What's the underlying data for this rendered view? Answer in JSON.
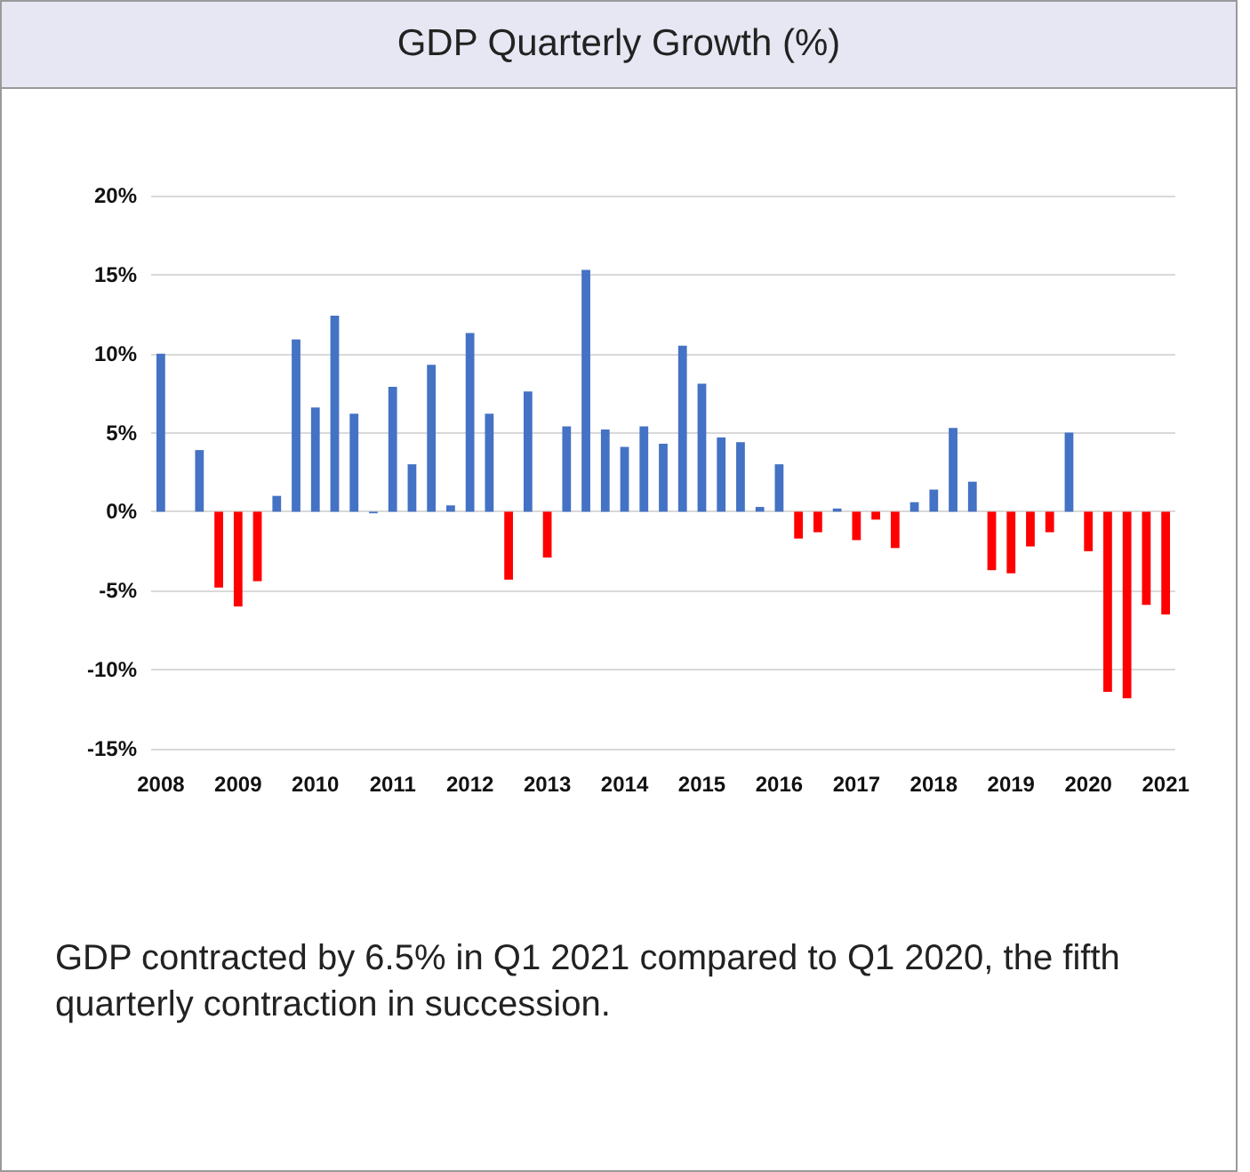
{
  "chart_data": {
    "type": "bar",
    "title": "GDP Quarterly Growth (%)",
    "categories": [
      "2008",
      null,
      null,
      null,
      "2009",
      null,
      null,
      null,
      "2010",
      null,
      null,
      null,
      "2011",
      null,
      null,
      null,
      "2012",
      null,
      null,
      null,
      "2013",
      null,
      null,
      null,
      "2014",
      null,
      null,
      null,
      "2015",
      null,
      null,
      null,
      "2016",
      null,
      null,
      null,
      "2017",
      null,
      null,
      null,
      "2018",
      null,
      null,
      null,
      "2019",
      null,
      null,
      null,
      "2020",
      null,
      null,
      null,
      "2021"
    ],
    "values": [
      10.0,
      0,
      3.9,
      -4.8,
      -6.0,
      -4.4,
      1.0,
      10.9,
      6.6,
      12.4,
      6.2,
      -0.1,
      7.9,
      3.0,
      9.3,
      0.4,
      11.3,
      6.2,
      -4.3,
      7.6,
      -2.9,
      5.4,
      15.3,
      5.2,
      4.1,
      5.4,
      4.3,
      10.5,
      8.1,
      4.7,
      4.4,
      0.3,
      3.0,
      -1.7,
      -1.3,
      0.2,
      -1.8,
      -0.5,
      -2.3,
      0.6,
      1.4,
      5.3,
      1.9,
      -3.7,
      -3.9,
      -2.2,
      -1.3,
      5.0,
      -2.5,
      -11.4,
      -11.8,
      -5.9,
      -6.5
    ],
    "colors": [
      "#4472c4",
      "#4472c4",
      "#4472c4",
      "#ff0000",
      "#ff0000",
      "#ff0000",
      "#4472c4",
      "#4472c4",
      "#4472c4",
      "#4472c4",
      "#4472c4",
      "#4472c4",
      "#4472c4",
      "#4472c4",
      "#4472c4",
      "#4472c4",
      "#4472c4",
      "#4472c4",
      "#ff0000",
      "#4472c4",
      "#ff0000",
      "#4472c4",
      "#4472c4",
      "#4472c4",
      "#4472c4",
      "#4472c4",
      "#4472c4",
      "#4472c4",
      "#4472c4",
      "#4472c4",
      "#4472c4",
      "#4472c4",
      "#4472c4",
      "#ff0000",
      "#ff0000",
      "#4472c4",
      "#ff0000",
      "#ff0000",
      "#ff0000",
      "#4472c4",
      "#4472c4",
      "#4472c4",
      "#4472c4",
      "#ff0000",
      "#ff0000",
      "#ff0000",
      "#ff0000",
      "#4472c4",
      "#ff0000",
      "#ff0000",
      "#ff0000",
      "#ff0000",
      "#ff0000"
    ],
    "ylim": [
      -15,
      20
    ],
    "yticks": [
      {
        "value": -15,
        "label": "-15%"
      },
      {
        "value": -10,
        "label": "-10%"
      },
      {
        "value": -5,
        "label": "-5%"
      },
      {
        "value": 0,
        "label": "0%"
      },
      {
        "value": 5,
        "label": "5%"
      },
      {
        "value": 10,
        "label": "10%"
      },
      {
        "value": 15,
        "label": "15%"
      },
      {
        "value": 20,
        "label": "20%"
      }
    ],
    "grid": "y",
    "annotations": [
      "GDP contracted by 6.5% in Q1 2021 compared to Q1 2020, the fifth quarterly contraction in succession."
    ]
  }
}
